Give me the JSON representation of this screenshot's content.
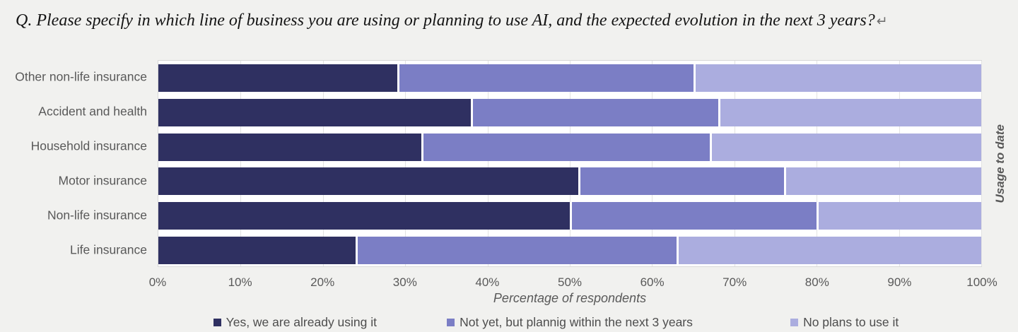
{
  "title": {
    "text": "Q. Please specify in which line of business you are using or planning to use AI, and the expected evolution in the next 3 years?",
    "return_mark": "↵"
  },
  "chart_data": {
    "type": "bar",
    "orientation": "horizontal",
    "stacked": true,
    "categories": [
      "Other non-life insurance",
      "Accident and health",
      "Household insurance",
      "Motor insurance",
      "Non-life insurance",
      "Life insurance"
    ],
    "series": [
      {
        "name": "Yes, we are already using it",
        "color": "#2F3061",
        "values": [
          29,
          38,
          32,
          51,
          50,
          24
        ]
      },
      {
        "name": "Not yet, but plannig within the next 3 years",
        "color": "#7B7EC5",
        "values": [
          36,
          30,
          35,
          25,
          30,
          39
        ]
      },
      {
        "name": "No plans to use it",
        "color": "#ABADDF",
        "values": [
          35,
          32,
          33,
          24,
          20,
          37
        ]
      }
    ],
    "xlabel": "Percentage of respondents",
    "right_axis_label": "Usage to date",
    "xlim": [
      0,
      100
    ],
    "x_ticks": [
      "0%",
      "10%",
      "20%",
      "30%",
      "40%",
      "50%",
      "60%",
      "70%",
      "80%",
      "90%",
      "100%"
    ],
    "grid": true,
    "legend_position": "bottom"
  },
  "colors": {
    "page_background": "#f1f1ef",
    "plot_background": "#ffffff",
    "plot_border": "#d8d8d8",
    "gridline": "#e3e3e3",
    "axis_text": "#595959"
  }
}
